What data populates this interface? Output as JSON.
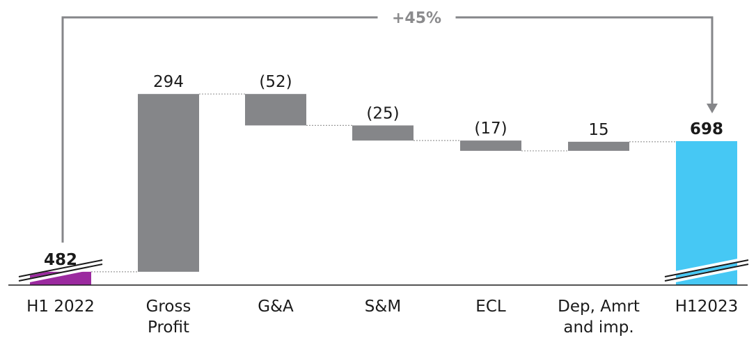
{
  "chart_data": {
    "type": "bar",
    "variant": "waterfall",
    "title": "",
    "xlabel": "",
    "ylabel": "",
    "categories": [
      [
        "H1 2022"
      ],
      [
        "Gross",
        "Profit"
      ],
      [
        "G&A"
      ],
      [
        "S&M"
      ],
      [
        "ECL"
      ],
      [
        "Dep, Amrt",
        "and imp."
      ],
      [
        "H12023"
      ]
    ],
    "values": [
      482,
      294,
      -52,
      -25,
      -17,
      15,
      698
    ],
    "value_labels": [
      "482",
      "294",
      "(52)",
      "(25)",
      "(17)",
      "15",
      "698"
    ],
    "bar_kinds": [
      "total",
      "delta",
      "delta",
      "delta",
      "delta",
      "delta",
      "total"
    ],
    "axis_break": true,
    "growth_annotation": "+45%",
    "grid": false,
    "legend": "none",
    "colors": {
      "start_total": "#9b2a9f",
      "end_total": "#46c8f4",
      "delta": "#858689",
      "connector": "#9a9a9a",
      "axis": "#1a1a1a"
    }
  }
}
